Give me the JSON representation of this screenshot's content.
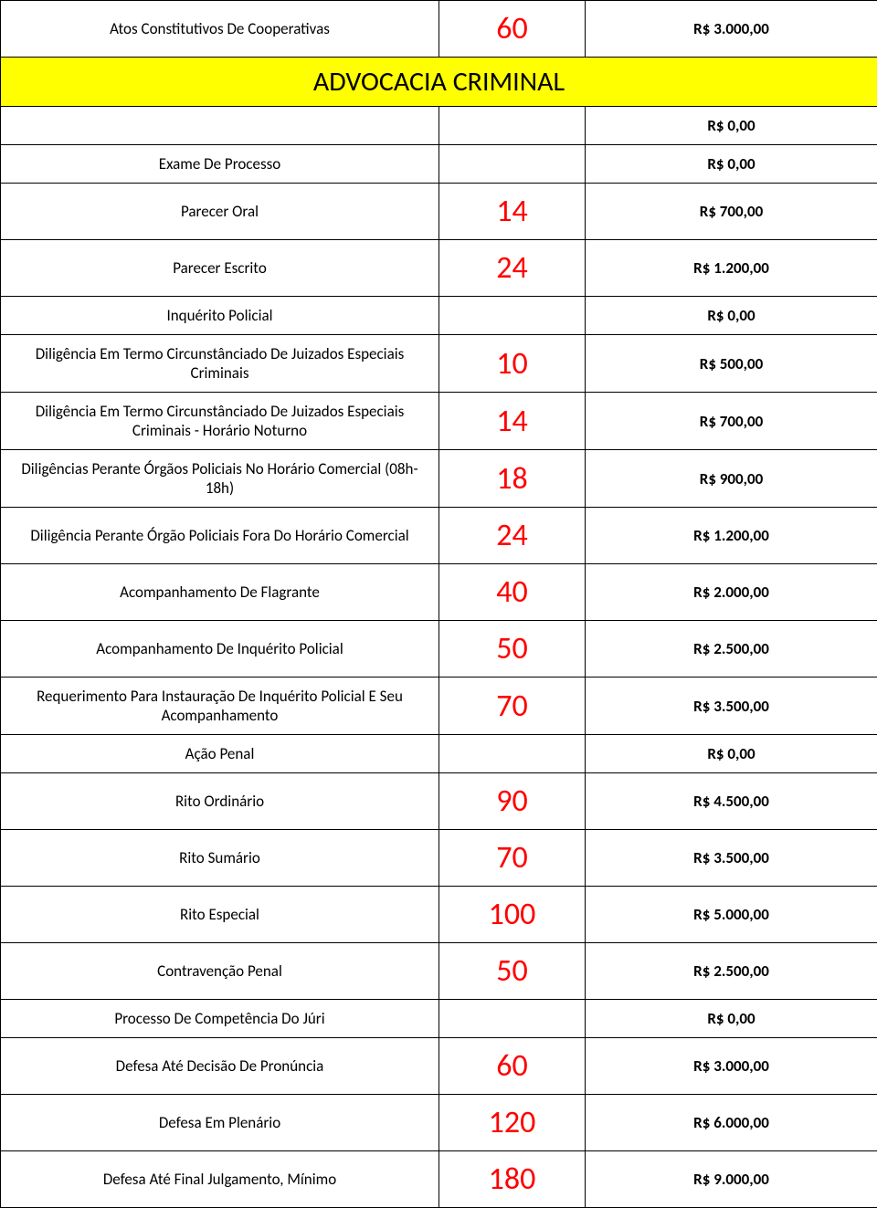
{
  "rows": [
    {
      "desc": "Atos Constitutivos De Cooperativas",
      "num": "60",
      "val": "R$ 3.000,00",
      "type": "row"
    },
    {
      "desc": "ADVOCACIA CRIMINAL",
      "type": "header"
    },
    {
      "desc": "",
      "num": "",
      "val": "R$ 0,00",
      "type": "row"
    },
    {
      "desc": "Exame De Processo",
      "num": "",
      "val": "R$ 0,00",
      "type": "row"
    },
    {
      "desc": "Parecer Oral",
      "num": "14",
      "val": "R$ 700,00",
      "type": "row"
    },
    {
      "desc": "Parecer Escrito",
      "num": "24",
      "val": "R$ 1.200,00",
      "type": "row"
    },
    {
      "desc": "Inquérito Policial",
      "num": "",
      "val": "R$ 0,00",
      "type": "row"
    },
    {
      "desc": "Diligência Em Termo Circunstânciado De Juizados Especiais Criminais",
      "num": "10",
      "val": "R$ 500,00",
      "type": "row"
    },
    {
      "desc": "Diligência Em Termo Circunstânciado De Juizados Especiais Criminais - Horário Noturno",
      "num": "14",
      "val": "R$ 700,00",
      "type": "row"
    },
    {
      "desc": "Diligências Perante Órgãos Policiais No Horário Comercial (08h-18h)",
      "num": "18",
      "val": "R$ 900,00",
      "type": "row"
    },
    {
      "desc": "Diligência Perante Órgão Policiais Fora Do Horário Comercial",
      "num": "24",
      "val": "R$ 1.200,00",
      "type": "row"
    },
    {
      "desc": "Acompanhamento De Flagrante",
      "num": "40",
      "val": "R$ 2.000,00",
      "type": "row"
    },
    {
      "desc": "Acompanhamento De Inquérito Policial",
      "num": "50",
      "val": "R$ 2.500,00",
      "type": "row"
    },
    {
      "desc": "Requerimento Para Instauração De Inquérito Policial E Seu Acompanhamento",
      "num": "70",
      "val": "R$ 3.500,00",
      "type": "row"
    },
    {
      "desc": "Ação Penal",
      "num": "",
      "val": "R$ 0,00",
      "type": "row"
    },
    {
      "desc": "Rito Ordinário",
      "num": "90",
      "val": "R$ 4.500,00",
      "type": "row"
    },
    {
      "desc": "Rito Sumário",
      "num": "70",
      "val": "R$ 3.500,00",
      "type": "row"
    },
    {
      "desc": "Rito Especial",
      "num": "100",
      "val": "R$ 5.000,00",
      "type": "row"
    },
    {
      "desc": "Contravenção Penal",
      "num": "50",
      "val": "R$ 2.500,00",
      "type": "row"
    },
    {
      "desc": "Processo De Competência Do Júri",
      "num": "",
      "val": "R$ 0,00",
      "type": "row"
    },
    {
      "desc": "Defesa Até Decisão De Pronúncia",
      "num": "60",
      "val": "R$ 3.000,00",
      "type": "row"
    },
    {
      "desc": "Defesa Em Plenário",
      "num": "120",
      "val": "R$ 6.000,00",
      "type": "row"
    },
    {
      "desc": "Defesa Até Final Julgamento, Mínimo",
      "num": "180",
      "val": "R$ 9.000,00",
      "type": "row"
    }
  ],
  "styling": {
    "header_bg": "#ffff00",
    "num_color": "#ff0000",
    "border_color": "#000000",
    "desc_fontsize": 17,
    "num_fontsize": 34,
    "val_fontsize": 17,
    "header_fontsize": 30
  }
}
